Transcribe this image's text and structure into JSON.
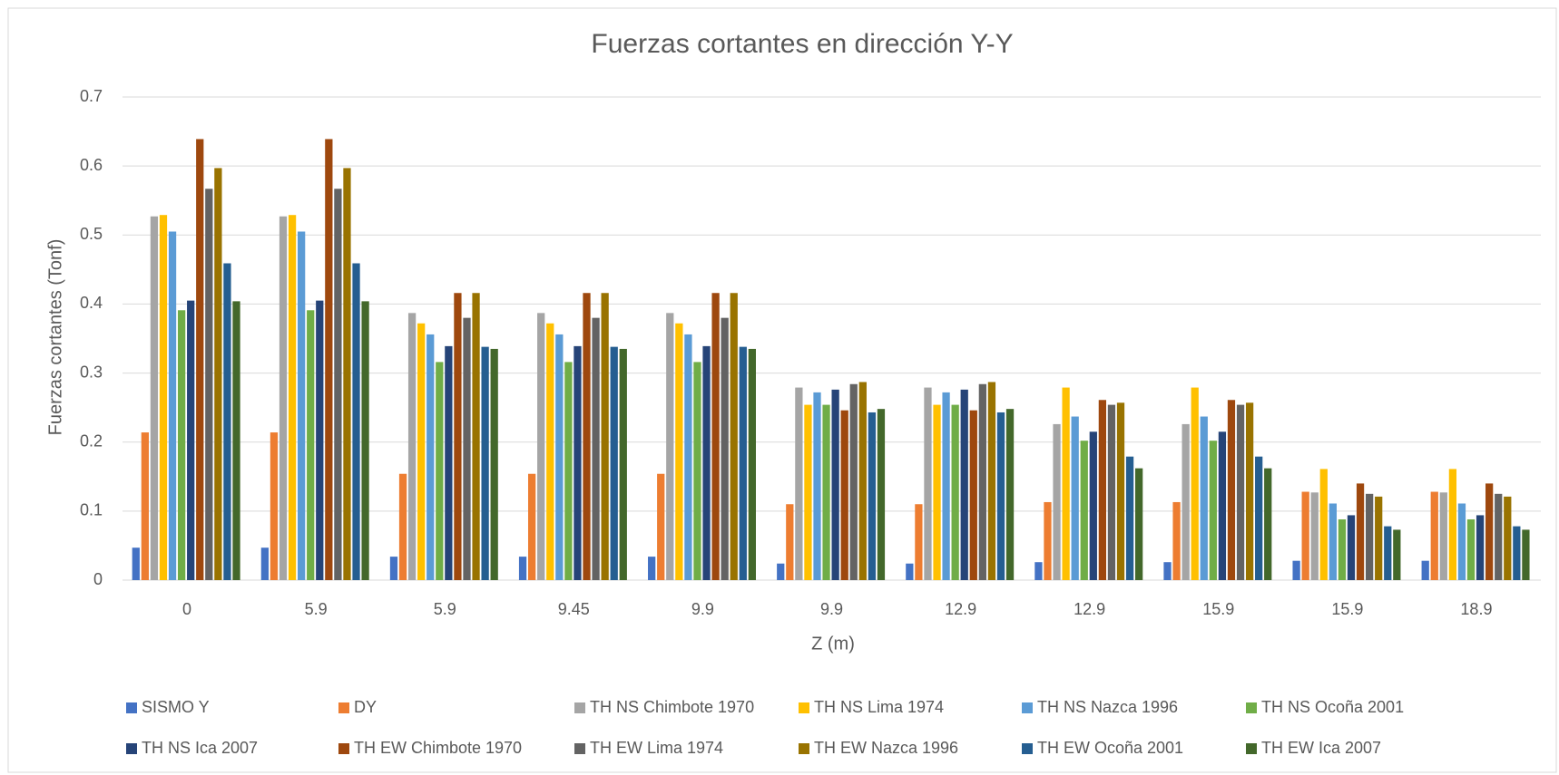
{
  "chart_data": {
    "type": "bar",
    "title": "Fuerzas cortantes en dirección Y-Y",
    "x_label": "Z (m)",
    "y_label": "Fuerzas cortantes (Tonf)",
    "categories": [
      "0",
      "5.9",
      "5.9",
      "9.45",
      "9.9",
      "9.9",
      "12.9",
      "12.9",
      "15.9",
      "15.9",
      "18.9"
    ],
    "ylim": [
      0,
      0.7
    ],
    "yticks": [
      0,
      0.1,
      0.2,
      0.3,
      0.4,
      0.5,
      0.6,
      0.7
    ],
    "grid": true,
    "legend": "bottom",
    "series": [
      {
        "name": "SISMO Y",
        "color": "#4472c4",
        "values": [
          0.047,
          0.047,
          0.034,
          0.034,
          0.034,
          0.024,
          0.024,
          0.026,
          0.026,
          0.028,
          0.028
        ]
      },
      {
        "name": "DY",
        "color": "#ed7d31",
        "values": [
          0.214,
          0.214,
          0.154,
          0.154,
          0.154,
          0.11,
          0.11,
          0.113,
          0.113,
          0.128,
          0.128
        ]
      },
      {
        "name": "TH NS Chimbote 1970",
        "color": "#a5a5a5",
        "values": [
          0.527,
          0.527,
          0.387,
          0.387,
          0.387,
          0.279,
          0.279,
          0.226,
          0.226,
          0.127,
          0.127
        ]
      },
      {
        "name": "TH NS Lima 1974",
        "color": "#ffc000",
        "values": [
          0.529,
          0.529,
          0.372,
          0.372,
          0.372,
          0.254,
          0.254,
          0.279,
          0.279,
          0.161,
          0.161
        ]
      },
      {
        "name": "TH NS Nazca 1996",
        "color": "#5b9bd5",
        "values": [
          0.505,
          0.505,
          0.356,
          0.356,
          0.356,
          0.272,
          0.272,
          0.237,
          0.237,
          0.111,
          0.111
        ]
      },
      {
        "name": "TH NS Ocoña 2001",
        "color": "#70ad47",
        "values": [
          0.391,
          0.391,
          0.316,
          0.316,
          0.316,
          0.254,
          0.254,
          0.202,
          0.202,
          0.088,
          0.088
        ]
      },
      {
        "name": "TH NS Ica 2007",
        "color": "#264478",
        "values": [
          0.405,
          0.405,
          0.339,
          0.339,
          0.339,
          0.276,
          0.276,
          0.215,
          0.215,
          0.094,
          0.094
        ]
      },
      {
        "name": "TH EW Chimbote 1970",
        "color": "#9e480e",
        "values": [
          0.639,
          0.639,
          0.416,
          0.416,
          0.416,
          0.246,
          0.246,
          0.261,
          0.261,
          0.14,
          0.14
        ]
      },
      {
        "name": "TH EW Lima 1974",
        "color": "#636363",
        "values": [
          0.567,
          0.567,
          0.38,
          0.38,
          0.38,
          0.284,
          0.284,
          0.254,
          0.254,
          0.125,
          0.125
        ]
      },
      {
        "name": "TH EW Nazca 1996",
        "color": "#997300",
        "values": [
          0.597,
          0.597,
          0.416,
          0.416,
          0.416,
          0.287,
          0.287,
          0.257,
          0.257,
          0.121,
          0.121
        ]
      },
      {
        "name": "TH EW Ocoña 2001",
        "color": "#255e91",
        "values": [
          0.459,
          0.459,
          0.338,
          0.338,
          0.338,
          0.243,
          0.243,
          0.179,
          0.179,
          0.078,
          0.078
        ]
      },
      {
        "name": "TH EW Ica 2007",
        "color": "#43682b",
        "values": [
          0.404,
          0.404,
          0.335,
          0.335,
          0.335,
          0.248,
          0.248,
          0.162,
          0.162,
          0.073,
          0.073
        ]
      }
    ]
  }
}
